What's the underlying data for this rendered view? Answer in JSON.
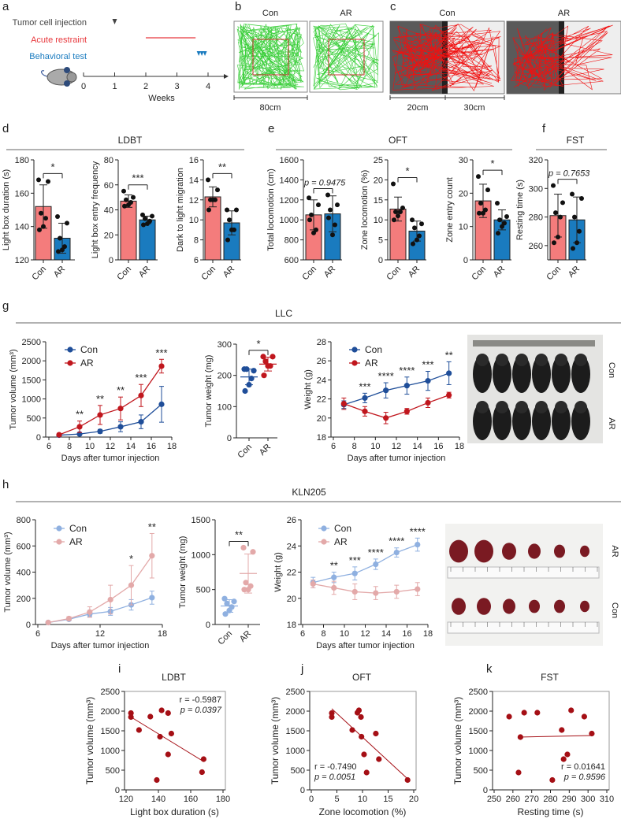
{
  "panel_labels": {
    "a": "a",
    "b": "b",
    "c": "c",
    "d": "d",
    "e": "e",
    "f": "f",
    "g": "g",
    "h": "h",
    "i": "i",
    "j": "j",
    "k": "k"
  },
  "colors": {
    "con_bar": "#f47c7c",
    "ar_bar": "#1a7bbf",
    "llc_con": "#1f4e99",
    "llc_ar": "#c0161d",
    "kln_con": "#8fb0e0",
    "kln_ar": "#e3a9a9",
    "scatter": "#a50f15",
    "injection": "#444444",
    "restraint": "#e8383d",
    "behavior": "#1a7bbf"
  },
  "panel_a": {
    "legend": [
      "Tumor cell injection",
      "Acute restraint",
      "Behavioral test"
    ],
    "ticks": [
      "0",
      "1",
      "2",
      "3",
      "4"
    ],
    "xlabel": "Weeks",
    "injection_week": 1,
    "restraint_weeks": [
      2,
      3.6
    ],
    "behavior_weeks": [
      3.7,
      3.8,
      3.9
    ]
  },
  "panel_b": {
    "labels": [
      "Con",
      "AR"
    ],
    "scale": "80cm"
  },
  "panel_c": {
    "labels": [
      "Con",
      "AR"
    ],
    "scale": [
      "20cm",
      "30cm"
    ]
  },
  "group_titles": {
    "ldbt": "LDBT",
    "oft": "OFT",
    "fst": "FST",
    "llc": "LLC",
    "kln205": "KLN205"
  },
  "photos": {
    "llc_labels": [
      "Con",
      "AR"
    ],
    "kln_labels": [
      "AR",
      "Con"
    ]
  },
  "chart_data": [
    {
      "id": "d1",
      "type": "bar",
      "ylabel": "Light box duration (s)",
      "ylim": [
        120,
        180
      ],
      "yticks": [
        120,
        140,
        160,
        180
      ],
      "categories": [
        "Con",
        "AR"
      ],
      "means": [
        152,
        133
      ],
      "sd": [
        13,
        9
      ],
      "points": [
        [
          168,
          167,
          148,
          145,
          140,
          138
        ],
        [
          146,
          142,
          133,
          128,
          126,
          125
        ]
      ],
      "sig": "*"
    },
    {
      "id": "d2",
      "type": "bar",
      "ylabel": "Light box entry frequency",
      "ylim": [
        0,
        80
      ],
      "yticks": [
        0,
        20,
        40,
        60,
        80
      ],
      "categories": [
        "Con",
        "AR"
      ],
      "means": [
        47,
        32
      ],
      "sd": [
        5,
        3
      ],
      "points": [
        [
          55,
          50,
          48,
          46,
          44,
          43
        ],
        [
          36,
          35,
          33,
          31,
          29,
          28
        ]
      ],
      "sig": "***"
    },
    {
      "id": "d3",
      "type": "bar",
      "ylabel": "Dark to light migration",
      "ylim": [
        6,
        16
      ],
      "yticks": [
        6,
        8,
        10,
        12,
        14,
        16
      ],
      "categories": [
        "Con",
        "AR"
      ],
      "means": [
        12.3,
        9.7
      ],
      "sd": [
        1,
        1.2
      ],
      "points": [
        [
          14,
          13,
          12,
          12,
          12,
          11
        ],
        [
          11,
          11,
          10,
          9,
          9,
          8
        ]
      ],
      "sig": "**"
    },
    {
      "id": "e1",
      "type": "bar",
      "ylabel": "Total locomotion (cm)",
      "ylim": [
        600,
        1600
      ],
      "yticks": [
        600,
        800,
        1000,
        1200,
        1400,
        1600
      ],
      "categories": [
        "Con",
        "AR"
      ],
      "means": [
        1050,
        1060
      ],
      "sd": [
        150,
        180
      ],
      "points": [
        [
          1220,
          1150,
          1050,
          900,
          870,
          1000
        ],
        [
          1250,
          1150,
          1100,
          950,
          850,
          1020
        ]
      ],
      "sig": "p = 0.9475"
    },
    {
      "id": "e2",
      "type": "bar",
      "ylabel": "Zone locomotion (%)",
      "ylim": [
        0,
        25
      ],
      "yticks": [
        0,
        5,
        10,
        15,
        20,
        25
      ],
      "categories": [
        "Con",
        "AR"
      ],
      "means": [
        12.7,
        7.2
      ],
      "sd": [
        3,
        2.5
      ],
      "points": [
        [
          19,
          13,
          12,
          12,
          11,
          10
        ],
        [
          10,
          9,
          8,
          6,
          5,
          4
        ]
      ],
      "sig": "*"
    },
    {
      "id": "e3",
      "type": "bar",
      "ylabel": "Zone entry count",
      "ylim": [
        0,
        30
      ],
      "yticks": [
        0,
        10,
        20,
        30
      ],
      "categories": [
        "Con",
        "AR"
      ],
      "means": [
        17.7,
        12
      ],
      "sd": [
        5,
        3
      ],
      "points": [
        [
          25,
          21,
          17,
          15,
          14,
          14
        ],
        [
          17,
          13,
          12,
          11,
          10,
          8
        ]
      ],
      "sig": "*"
    },
    {
      "id": "f",
      "type": "bar",
      "ylabel": "Resting time (s)",
      "ylim": [
        250,
        320
      ],
      "yticks": [
        260,
        280,
        300,
        320
      ],
      "categories": [
        "Con",
        "AR"
      ],
      "means": [
        281,
        278
      ],
      "sd": [
        15,
        16
      ],
      "points": [
        [
          302,
          290,
          283,
          280,
          266,
          262
        ],
        [
          296,
          293,
          280,
          270,
          262,
          258
        ]
      ],
      "sig": "p = 0.7653"
    },
    {
      "id": "g1",
      "type": "line",
      "ylabel": "Tumor volume (mm³)",
      "xlabel": "Days after tumor injection",
      "xlim": [
        6,
        18
      ],
      "xticks": [
        6,
        8,
        10,
        12,
        14,
        16,
        18
      ],
      "ylim": [
        0,
        2500
      ],
      "yticks": [
        0,
        500,
        1000,
        1500,
        2000,
        2500
      ],
      "x": [
        7,
        9,
        11,
        13,
        15,
        17
      ],
      "series": [
        {
          "name": "Con",
          "values": [
            50,
            80,
            150,
            270,
            400,
            860
          ],
          "err": [
            15,
            30,
            50,
            130,
            180,
            470
          ]
        },
        {
          "name": "AR",
          "values": [
            60,
            270,
            580,
            750,
            1090,
            1860
          ],
          "err": [
            30,
            150,
            250,
            300,
            290,
            180
          ]
        }
      ],
      "sig": [
        {
          "x": 9,
          "label": "**"
        },
        {
          "x": 11,
          "label": "**"
        },
        {
          "x": 13,
          "label": "**"
        },
        {
          "x": 15,
          "label": "***"
        },
        {
          "x": 17,
          "label": "***"
        }
      ],
      "legend": "top-left"
    },
    {
      "id": "g2",
      "type": "dot",
      "ylabel": "Tumor weight (mg)",
      "ylim": [
        0,
        300
      ],
      "yticks": [
        0,
        100,
        200,
        300
      ],
      "categories": [
        "Con",
        "AR"
      ],
      "means": [
        195,
        236
      ],
      "sd": [
        25,
        22
      ],
      "points": [
        [
          220,
          215,
          220,
          190,
          170,
          150
        ],
        [
          260,
          260,
          245,
          230,
          230,
          200
        ]
      ],
      "sig": "*"
    },
    {
      "id": "g3",
      "type": "line",
      "ylabel": "Weight (g)",
      "xlabel": "Days after tumor injection",
      "xlim": [
        6,
        18
      ],
      "xticks": [
        6,
        8,
        10,
        12,
        14,
        16,
        18
      ],
      "ylim": [
        18,
        28
      ],
      "yticks": [
        18,
        20,
        22,
        24,
        26,
        28
      ],
      "x": [
        7,
        9,
        11,
        13,
        15,
        17
      ],
      "series": [
        {
          "name": "Con",
          "values": [
            21.4,
            22.1,
            22.9,
            23.4,
            23.9,
            24.7
          ],
          "err": [
            0.4,
            0.5,
            0.8,
            0.9,
            1.0,
            1.2
          ]
        },
        {
          "name": "AR",
          "values": [
            21.5,
            20.7,
            20.0,
            20.7,
            21.6,
            22.4
          ],
          "err": [
            0.6,
            0.5,
            0.6,
            0.3,
            0.5,
            0.3
          ]
        }
      ],
      "sig": [
        {
          "x": 9,
          "label": "***"
        },
        {
          "x": 11,
          "label": "****"
        },
        {
          "x": 13,
          "label": "****"
        },
        {
          "x": 15,
          "label": "***"
        },
        {
          "x": 17,
          "label": "**"
        }
      ],
      "legend": "top-left"
    },
    {
      "id": "h1",
      "type": "line",
      "ylabel": "Tumor volume (mm³)",
      "xlabel": "Days after tumor injection",
      "xlim": [
        6,
        18
      ],
      "xticks": [
        6,
        12,
        18
      ],
      "ylim": [
        0,
        800
      ],
      "yticks": [
        0,
        200,
        400,
        600,
        800
      ],
      "x": [
        7,
        9,
        11,
        13,
        15,
        17
      ],
      "series": [
        {
          "name": "Con",
          "values": [
            15,
            40,
            80,
            100,
            150,
            205
          ],
          "err": [
            5,
            10,
            20,
            30,
            40,
            50
          ]
        },
        {
          "name": "AR",
          "values": [
            15,
            45,
            95,
            190,
            300,
            525
          ],
          "err": [
            5,
            15,
            40,
            110,
            150,
            170
          ]
        }
      ],
      "sig": [
        {
          "x": 15,
          "label": "*"
        },
        {
          "x": 17,
          "label": "**"
        }
      ],
      "legend": "top-left"
    },
    {
      "id": "h2",
      "type": "dot",
      "ylabel": "Tumor weight (mg)",
      "ylim": [
        0,
        1500
      ],
      "yticks": [
        0,
        500,
        1000,
        1500
      ],
      "categories": [
        "Con",
        "AR"
      ],
      "means": [
        265,
        730
      ],
      "sd": [
        90,
        280
      ],
      "points": [
        [
          370,
          330,
          300,
          250,
          200,
          150
        ],
        [
          1100,
          1040,
          600,
          550,
          500,
          500
        ]
      ],
      "sig": "**"
    },
    {
      "id": "h3",
      "type": "line",
      "ylabel": "Weight (g)",
      "xlabel": "Days after tumor injection",
      "xlim": [
        6,
        18
      ],
      "xticks": [
        6,
        8,
        10,
        12,
        14,
        16,
        18
      ],
      "ylim": [
        18,
        26
      ],
      "yticks": [
        18,
        20,
        22,
        24,
        26
      ],
      "x": [
        7,
        9,
        11,
        13,
        15,
        17
      ],
      "series": [
        {
          "name": "Con",
          "values": [
            21.2,
            21.6,
            21.9,
            22.6,
            23.5,
            24.1
          ],
          "err": [
            0.4,
            0.4,
            0.5,
            0.4,
            0.35,
            0.5
          ]
        },
        {
          "name": "AR",
          "values": [
            21.1,
            20.8,
            20.5,
            20.4,
            20.5,
            20.7
          ],
          "err": [
            0.3,
            0.5,
            0.6,
            0.5,
            0.5,
            0.5
          ]
        }
      ],
      "sig": [
        {
          "x": 9,
          "label": "**"
        },
        {
          "x": 11,
          "label": "***"
        },
        {
          "x": 13,
          "label": "****"
        },
        {
          "x": 15,
          "label": "****"
        },
        {
          "x": 17,
          "label": "****"
        }
      ],
      "legend": "top-left"
    },
    {
      "id": "i",
      "type": "scatter",
      "title": "LDBT",
      "xlabel": "Light box duration (s)",
      "ylabel": "Tumor volume (mm³)",
      "xlim": [
        120,
        180
      ],
      "xticks": [
        120,
        140,
        160,
        180
      ],
      "ylim": [
        0,
        2500
      ],
      "yticks": [
        0,
        500,
        1000,
        1500,
        2000,
        2500
      ],
      "x": [
        123,
        123,
        128,
        135,
        142,
        146,
        141,
        148,
        146,
        139,
        167,
        168
      ],
      "y": [
        1950,
        1850,
        1520,
        1860,
        2020,
        1950,
        1350,
        1430,
        900,
        250,
        450,
        780
      ],
      "fit": [
        [
          123,
          1850
        ],
        [
          168,
          720
        ]
      ],
      "annot": [
        "r = -0.5987",
        "p = 0.0397"
      ],
      "annot_pos": "top-right"
    },
    {
      "id": "j",
      "type": "scatter",
      "title": "OFT",
      "xlabel": "Zone locomotion (%)",
      "ylabel": "Tumor volume (mm³)",
      "xlim": [
        0,
        20
      ],
      "xticks": [
        0,
        5,
        10,
        15,
        20
      ],
      "ylim": [
        0,
        2500
      ],
      "yticks": [
        0,
        500,
        1000,
        1500,
        2000,
        2500
      ],
      "x": [
        4,
        4,
        8,
        9,
        9.3,
        9.7,
        9.8,
        10.3,
        10.8,
        12.6,
        13.2,
        18.8
      ],
      "y": [
        1950,
        1850,
        1520,
        1960,
        2020,
        1850,
        1350,
        900,
        440,
        1430,
        780,
        250
      ],
      "fit": [
        [
          4,
          2060
        ],
        [
          18.8,
          280
        ]
      ],
      "annot": [
        "r = -0.7490",
        "p = 0.0051"
      ],
      "annot_pos": "bottom-left"
    },
    {
      "id": "k",
      "type": "scatter",
      "title": "FST",
      "xlabel": "Resting time (s)",
      "ylabel": "Tumor volume (mm³)",
      "xlim": [
        250,
        310
      ],
      "xticks": [
        250,
        260,
        270,
        280,
        290,
        300,
        310
      ],
      "ylim": [
        0,
        2500
      ],
      "yticks": [
        0,
        500,
        1000,
        1500,
        2000,
        2500
      ],
      "x": [
        258,
        264,
        266,
        273,
        263,
        281,
        286,
        287,
        289,
        291,
        298,
        302
      ],
      "y": [
        1860,
        1340,
        1960,
        1960,
        440,
        250,
        1520,
        780,
        900,
        2020,
        1860,
        1430
      ],
      "fit": [
        [
          263,
          1340
        ],
        [
          302,
          1380
        ]
      ],
      "annot": [
        "r = 0.01641",
        "p = 0.9596"
      ],
      "annot_pos": "bottom-right"
    }
  ]
}
